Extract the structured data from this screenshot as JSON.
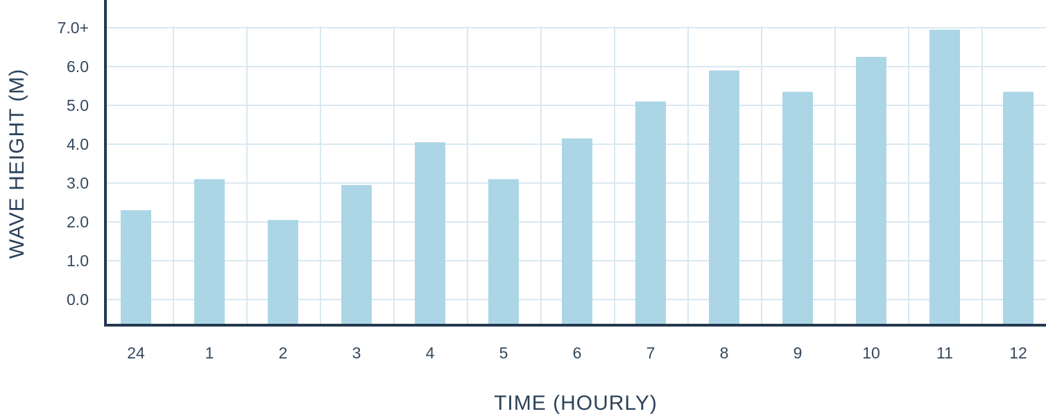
{
  "colors": {
    "bar": "#acd6e6",
    "grid": "#d9e8f0",
    "axis": "#24394f",
    "text": "#34495e",
    "background": "#ffffff"
  },
  "chart_data": {
    "type": "bar",
    "title": "",
    "xlabel": "TIME (HOURLY)",
    "ylabel": "WAVE HEIGHT (M)",
    "categories": [
      "24",
      "1",
      "2",
      "3",
      "4",
      "5",
      "6",
      "7",
      "8",
      "9",
      "10",
      "11",
      "12"
    ],
    "values": [
      2.3,
      3.1,
      2.05,
      2.95,
      4.05,
      3.1,
      4.15,
      5.1,
      5.9,
      5.35,
      6.25,
      6.95,
      5.35
    ],
    "yticks": [
      "0.0",
      "1.0",
      "2.0",
      "3.0",
      "4.0",
      "5.0",
      "6.0",
      "7.0+"
    ],
    "ylim": [
      -0.65,
      7.0
    ],
    "grid": true,
    "legend": "none"
  }
}
